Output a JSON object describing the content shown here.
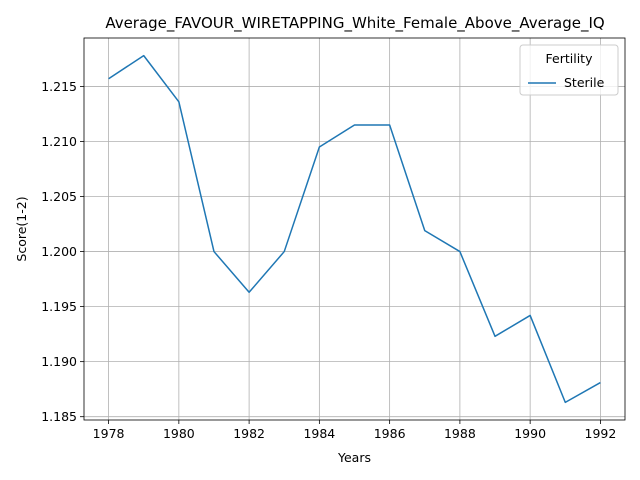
{
  "chart_data": {
    "type": "line",
    "title": "Average_FAVOUR_WIRETAPPING_White_Female_Above_Average_IQ",
    "xlabel": "Years",
    "ylabel": "Score(1-2)",
    "x": [
      1978,
      1979,
      1980,
      1981,
      1982,
      1983,
      1984,
      1985,
      1986,
      1987,
      1988,
      1989,
      1990,
      1991,
      1992
    ],
    "series": [
      {
        "name": "Sterile",
        "color": "#1f77b4",
        "values": [
          1.2157,
          1.2178,
          1.2136,
          1.2,
          1.1963,
          1.2,
          1.2095,
          1.2115,
          1.2115,
          1.2019,
          1.2,
          1.1923,
          1.1942,
          1.1863,
          1.1881
        ]
      }
    ],
    "xticks": [
      "1978",
      "1980",
      "1982",
      "1984",
      "1986",
      "1988",
      "1990",
      "1992"
    ],
    "yticks": [
      "1.185",
      "1.190",
      "1.195",
      "1.200",
      "1.205",
      "1.210",
      "1.215"
    ],
    "xlim": [
      1977.3,
      1992.7
    ],
    "ylim": [
      1.1847,
      1.2194
    ],
    "grid": true,
    "legend": {
      "title": "Fertility",
      "placement": "top-right"
    }
  }
}
